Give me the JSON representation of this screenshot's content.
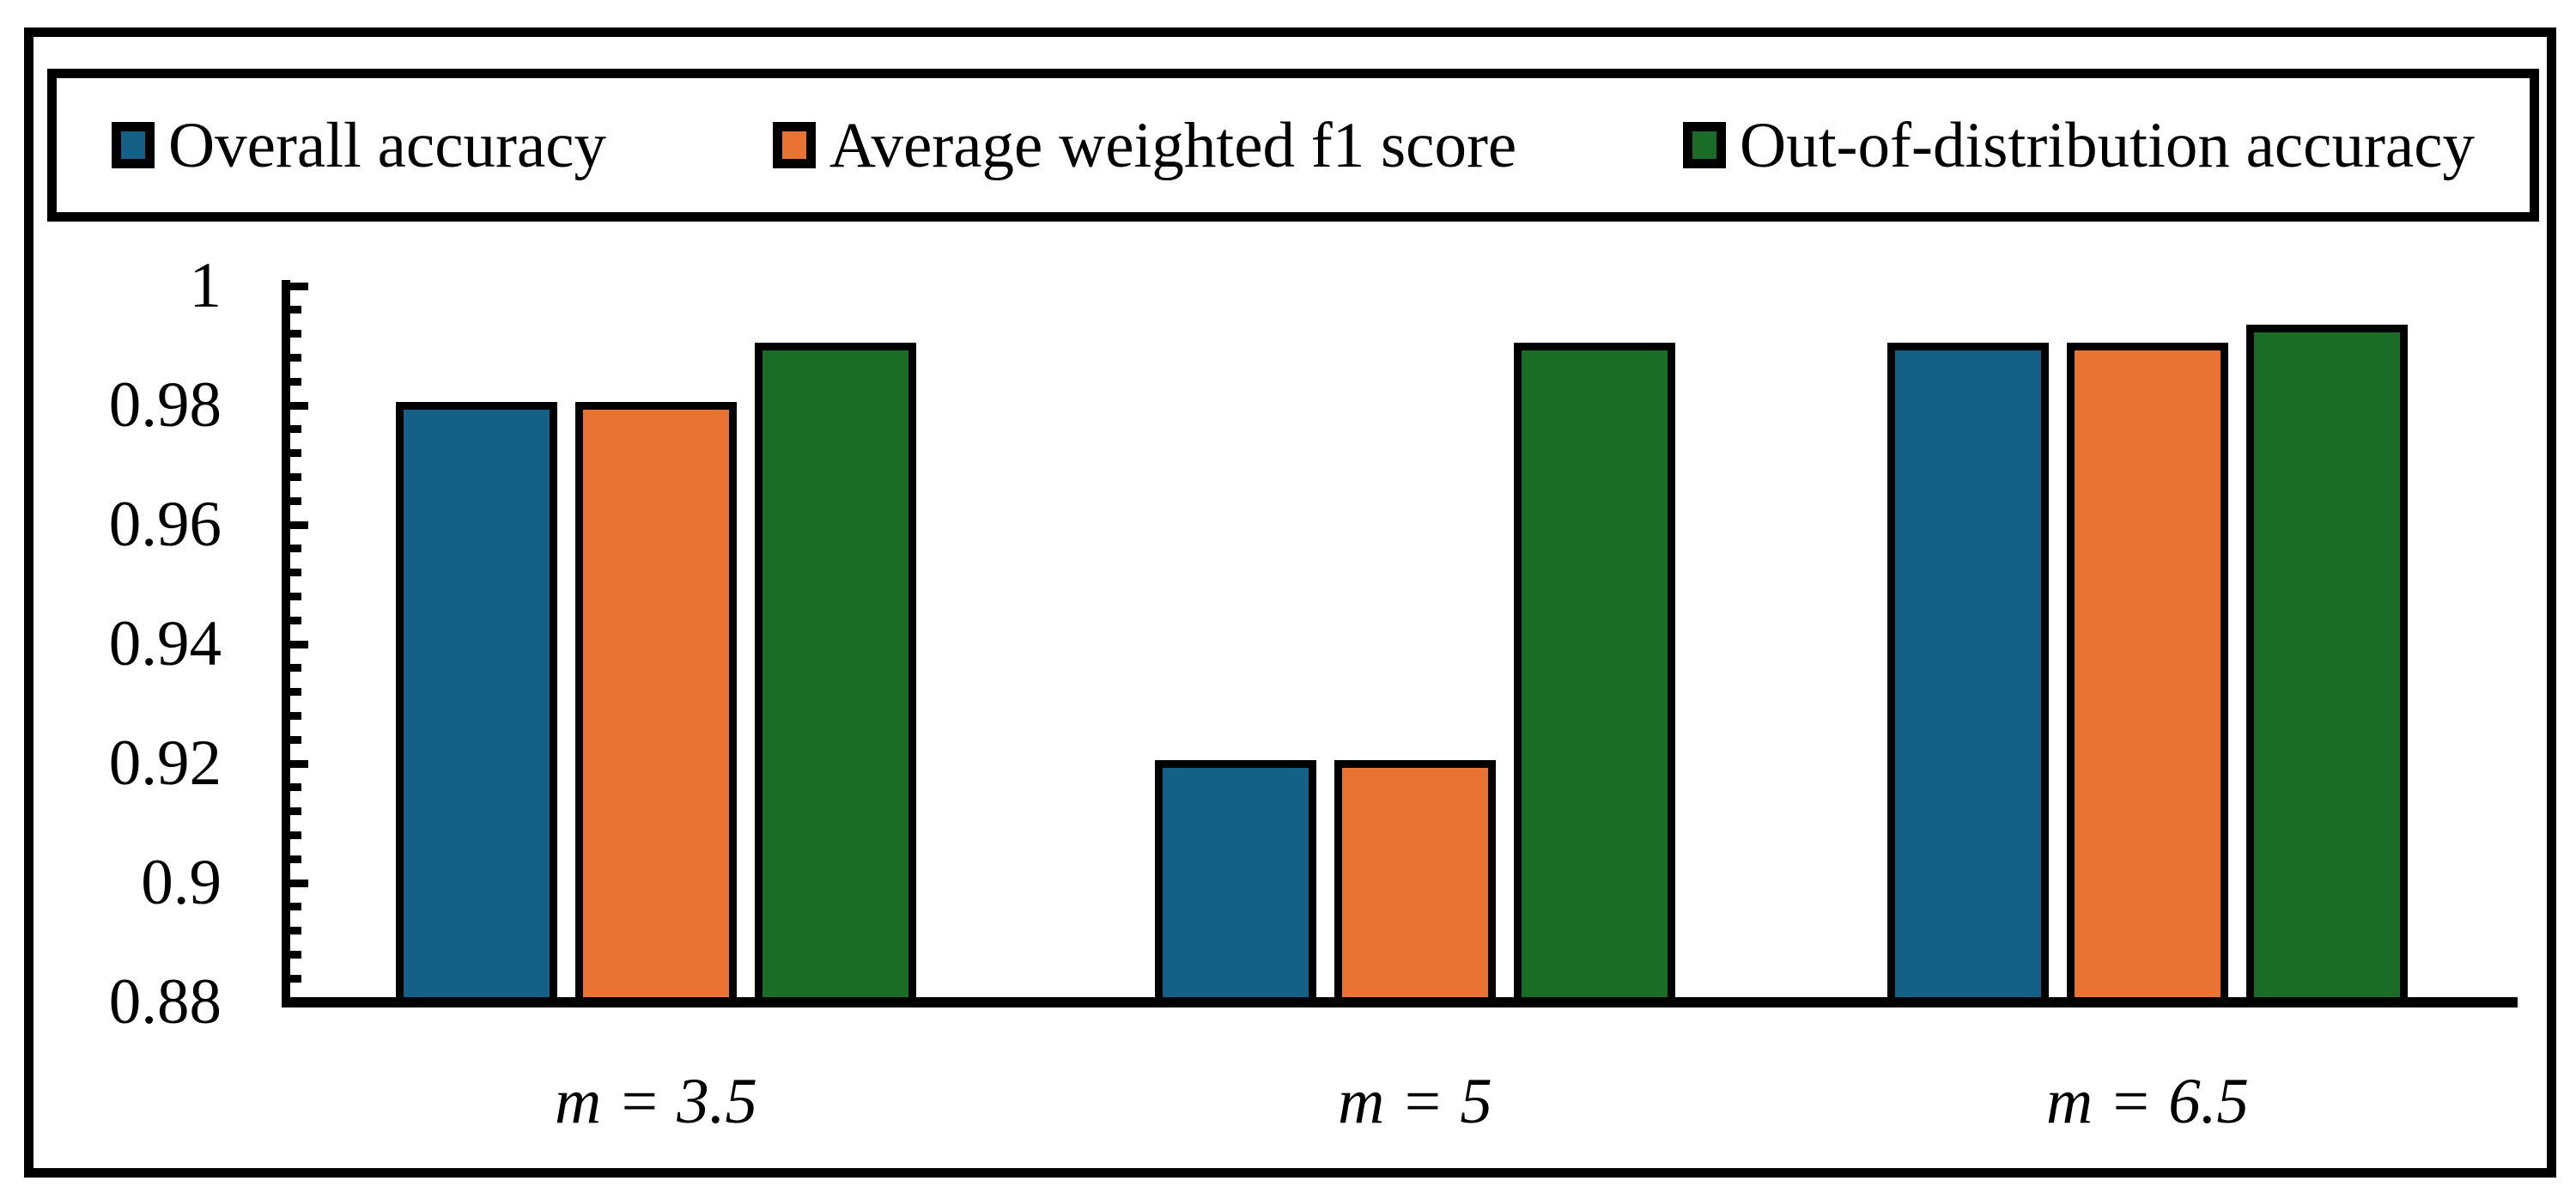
{
  "chart_data": {
    "type": "bar",
    "categories": [
      "m = 3.5",
      "m = 5",
      "m = 6.5"
    ],
    "series": [
      {
        "name": "Overall accuracy",
        "color": "#156086",
        "values": [
          0.98,
          0.92,
          0.99
        ]
      },
      {
        "name": "Average weighted f1 score",
        "color": "#e87332",
        "values": [
          0.98,
          0.92,
          0.99
        ]
      },
      {
        "name": "Out-of-distribution accuracy",
        "color": "#1b6c26",
        "values": [
          0.99,
          0.99,
          0.993
        ]
      }
    ],
    "ylim": [
      0.88,
      1.0
    ],
    "yticks": [
      1,
      0.98,
      0.96,
      0.94,
      0.92,
      0.9,
      0.88
    ],
    "y_minor_step": 0.004,
    "grid": false,
    "legend_position": "top",
    "bar_border_color": "#000000",
    "frame_color": "#000000"
  }
}
